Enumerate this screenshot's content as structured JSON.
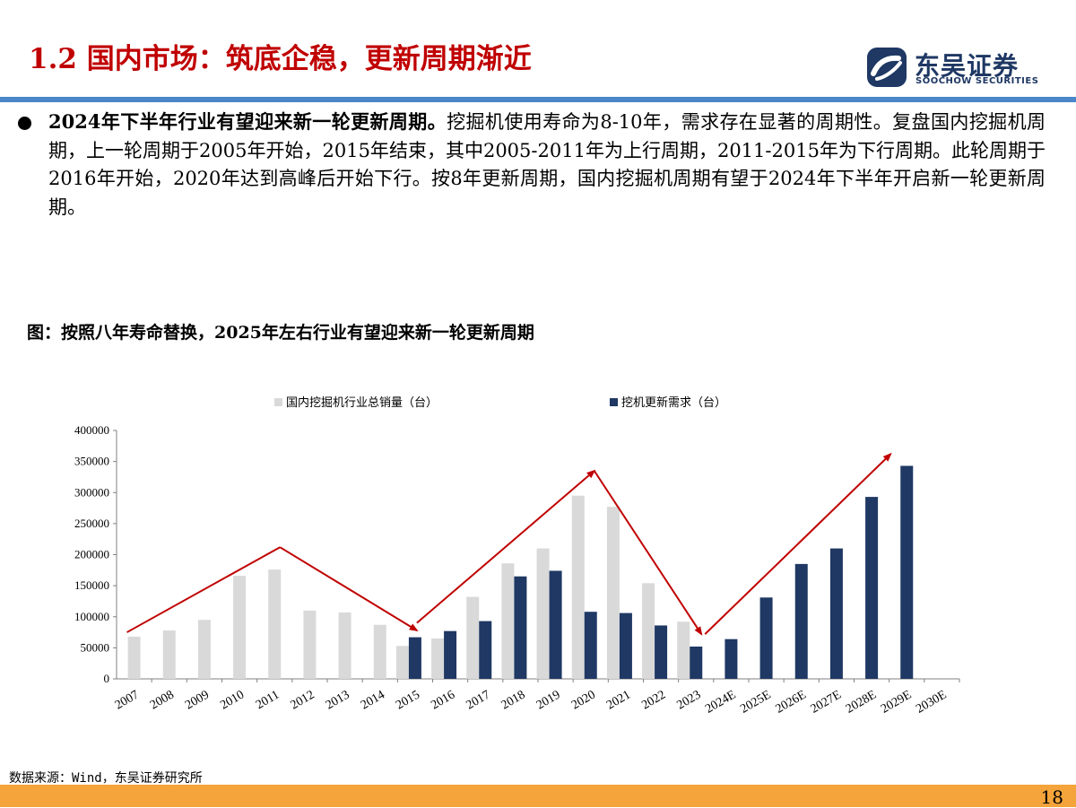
{
  "header": {
    "title": "1.2 国内市场：筑底企稳，更新周期渐近",
    "logo_cn": "东吴证券",
    "logo_en": "SOOCHOW SECURITIES"
  },
  "body": {
    "bold_lead": "2024年下半年行业有望迎来新一轮更新周期。",
    "text": "挖掘机使用寿命为8-10年，需求存在显著的周期性。复盘国内挖掘机周期，上一轮周期于2005年开始，2015年结束，其中2005-2011年为上行周期，2011-2015年为下行周期。此轮周期于2016年开始，2020年达到高峰后开始下行。按8年更新周期，国内挖掘机周期有望于2024年下半年开启新一轮更新周期。"
  },
  "figure": {
    "title": "图：按照八年寿命替换，2025年左右行业有望迎来新一轮更新周期"
  },
  "chart_data": {
    "type": "bar",
    "categories": [
      "2007",
      "2008",
      "2009",
      "2010",
      "2011",
      "2012",
      "2013",
      "2014",
      "2015",
      "2016",
      "2017",
      "2018",
      "2019",
      "2020",
      "2021",
      "2022",
      "2023",
      "2024E",
      "2025E",
      "2026E",
      "2027E",
      "2028E",
      "2029E",
      "2030E"
    ],
    "series": [
      {
        "name": "国内挖掘机行业总销量（台）",
        "color": "#d9d9d9",
        "values": [
          68000,
          78000,
          95000,
          166000,
          176000,
          110000,
          107000,
          87000,
          53000,
          65000,
          132000,
          186000,
          210000,
          295000,
          277000,
          154000,
          92000,
          null,
          null,
          null,
          null,
          null,
          null,
          null
        ]
      },
      {
        "name": "挖机更新需求（台）",
        "color": "#1f3864",
        "values": [
          null,
          null,
          null,
          null,
          null,
          null,
          null,
          null,
          67000,
          77000,
          93000,
          165000,
          174000,
          108000,
          106000,
          86000,
          52000,
          64000,
          131000,
          185000,
          210000,
          293000,
          343000,
          null
        ]
      }
    ],
    "ylim": [
      0,
      400000
    ],
    "yticks": [
      "0",
      "50000",
      "100000",
      "150000",
      "200000",
      "250000",
      "300000",
      "350000",
      "400000"
    ],
    "trend_arrows_color": "#c00000",
    "grid": false,
    "legend": "top"
  },
  "footer": {
    "source": "数据来源：Wind，东吴证券研究所",
    "page_number": "18"
  }
}
